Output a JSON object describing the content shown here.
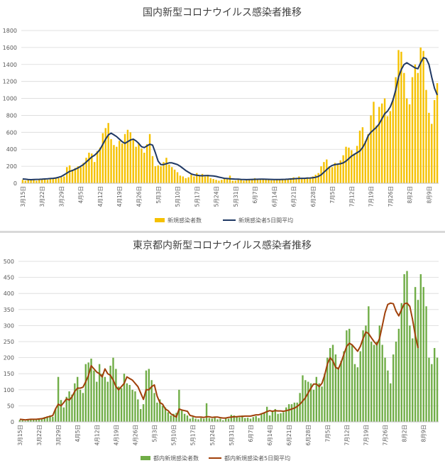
{
  "chart_data": [
    {
      "type": "bar",
      "title": "国内新型コロナウイルス感染者推移",
      "ylim": [
        0,
        1800
      ],
      "yticks": [
        0,
        200,
        400,
        600,
        800,
        1000,
        1200,
        1400,
        1600,
        1800
      ],
      "tick_labels": [
        "3月15日",
        "3月22日",
        "3月29日",
        "4月5日",
        "4月12日",
        "4月19日",
        "4月26日",
        "5月3日",
        "5月10日",
        "5月17日",
        "5月24日",
        "5月31日",
        "6月7日",
        "6月14日",
        "6月21日",
        "6月28日",
        "7月5日",
        "7月12日",
        "7月19日",
        "7月26日",
        "8月2日",
        "8月9日"
      ],
      "grid": true,
      "legend_position": "bottom",
      "colors": {
        "bars": "#f5c100",
        "line": "#1f3864"
      },
      "series": [
        {
          "name": "新規感染者数",
          "type": "bar",
          "values": [
            40,
            30,
            50,
            40,
            45,
            30,
            40,
            50,
            45,
            40,
            55,
            60,
            70,
            60,
            70,
            80,
            190,
            210,
            160,
            180,
            200,
            190,
            240,
            300,
            360,
            350,
            250,
            380,
            420,
            590,
            650,
            710,
            520,
            450,
            430,
            500,
            470,
            580,
            630,
            600,
            520,
            430,
            470,
            410,
            360,
            460,
            580,
            320,
            200,
            210,
            200,
            250,
            300,
            220,
            190,
            160,
            130,
            90,
            80,
            60,
            70,
            100,
            80,
            120,
            90,
            110,
            80,
            100,
            60,
            50,
            40,
            30,
            40,
            60,
            50,
            90,
            30,
            30,
            40,
            40,
            30,
            40,
            50,
            40,
            60,
            50,
            40,
            50,
            45,
            40,
            35,
            35,
            40,
            45,
            40,
            50,
            45,
            60,
            70,
            50,
            80,
            60,
            55,
            70,
            60,
            80,
            100,
            120,
            200,
            250,
            280,
            200,
            190,
            240,
            230,
            270,
            330,
            430,
            420,
            390,
            350,
            440,
            620,
            660,
            500,
            580,
            800,
            960,
            680,
            900,
            940,
            1000,
            790,
            850,
            1000,
            1250,
            1570,
            1550,
            1300,
            1000,
            930,
            1250,
            1400,
            1300,
            1600,
            1560,
            1100,
            830,
            700,
            980,
            1180
          ]
        },
        {
          "name": "新規感染者5日間平均",
          "type": "line",
          "values": [
            50,
            48,
            44,
            42,
            44,
            45,
            46,
            48,
            50,
            52,
            55,
            58,
            62,
            70,
            80,
            100,
            120,
            140,
            150,
            165,
            180,
            200,
            220,
            250,
            280,
            310,
            330,
            360,
            400,
            460,
            520,
            570,
            590,
            570,
            550,
            520,
            490,
            470,
            490,
            510,
            520,
            500,
            470,
            430,
            420,
            440,
            460,
            450,
            360,
            260,
            220,
            220,
            230,
            240,
            240,
            230,
            220,
            200,
            175,
            150,
            130,
            110,
            100,
            95,
            90,
            88,
            90,
            90,
            88,
            85,
            80,
            72,
            65,
            58,
            55,
            52,
            50,
            48,
            48,
            45,
            44,
            43,
            44,
            45,
            46,
            47,
            48,
            48,
            47,
            46,
            45,
            44,
            44,
            44,
            45,
            46,
            48,
            50,
            52,
            55,
            57,
            58,
            58,
            60,
            62,
            65,
            70,
            80,
            100,
            130,
            160,
            190,
            210,
            220,
            225,
            230,
            240,
            260,
            290,
            320,
            340,
            360,
            380,
            420,
            480,
            560,
            600,
            630,
            660,
            700,
            760,
            820,
            850,
            900,
            980,
            1100,
            1250,
            1340,
            1400,
            1420,
            1400,
            1380,
            1360,
            1350,
            1420,
            1480,
            1470,
            1400,
            1250,
            1120,
            1040
          ]
        }
      ]
    },
    {
      "type": "bar",
      "title": "東京都内新型コロナウイルス感染者推移",
      "ylim": [
        0,
        500
      ],
      "yticks": [
        0,
        50,
        100,
        150,
        200,
        250,
        300,
        350,
        400,
        450,
        500
      ],
      "tick_labels": [
        "3月15日",
        "3月22日",
        "3月29日",
        "4月5日",
        "4月12日",
        "4月19日",
        "4月26日",
        "5月3日",
        "5月10日",
        "5月17日",
        "5月24日",
        "5月31日",
        "6月7日",
        "6月14日",
        "6月21日",
        "6月28日",
        "7月5日",
        "7月12日",
        "7月19日",
        "7月26日",
        "8月2日",
        "8月9日"
      ],
      "grid": true,
      "legend_position": "bottom",
      "colors": {
        "bars": "#70ad47",
        "line": "#a0400a"
      },
      "series": [
        {
          "name": "都内新規感染者数",
          "type": "bar",
          "values": [
            6,
            5,
            3,
            7,
            8,
            9,
            6,
            10,
            12,
            15,
            17,
            20,
            16,
            40,
            140,
            68,
            45,
            78,
            95,
            85,
            120,
            140,
            100,
            90,
            180,
            185,
            197,
            160,
            125,
            180,
            150,
            140,
            125,
            175,
            200,
            165,
            110,
            105,
            150,
            120,
            115,
            100,
            95,
            70,
            40,
            55,
            160,
            165,
            130,
            90,
            60,
            70,
            50,
            45,
            30,
            20,
            25,
            28,
            100,
            35,
            25,
            20,
            10,
            15,
            10,
            8,
            12,
            10,
            58,
            12,
            10,
            15,
            8,
            10,
            5,
            12,
            10,
            22,
            20,
            15,
            14,
            20,
            12,
            13,
            10,
            15,
            18,
            12,
            25,
            30,
            47,
            20,
            35,
            40,
            25,
            27,
            30,
            45,
            55,
            55,
            60,
            60,
            90,
            145,
            130,
            125,
            120,
            100,
            140,
            120,
            110,
            150,
            200,
            230,
            240,
            210,
            170,
            190,
            220,
            285,
            290,
            240,
            180,
            170,
            220,
            285,
            300,
            360,
            250,
            240,
            250,
            300,
            240,
            200,
            160,
            120,
            210,
            250,
            290,
            370,
            460,
            470,
            300,
            260,
            420,
            380,
            460,
            420,
            360,
            200,
            180,
            230,
            200
          ]
        },
        {
          "name": "都内新規感染者5日間平均",
          "type": "line",
          "values": [
            8,
            7,
            6,
            7,
            8,
            8,
            8,
            9,
            10,
            12,
            15,
            17,
            20,
            40,
            55,
            50,
            60,
            72,
            68,
            78,
            95,
            105,
            105,
            108,
            125,
            145,
            175,
            165,
            155,
            150,
            140,
            165,
            150,
            145,
            130,
            110,
            100,
            110,
            120,
            140,
            135,
            130,
            120,
            110,
            90,
            70,
            100,
            100,
            110,
            115,
            80,
            60,
            55,
            40,
            35,
            25,
            20,
            15,
            40,
            37,
            35,
            33,
            20,
            18,
            15,
            15,
            15,
            14,
            16,
            16,
            14,
            15,
            15,
            13,
            12,
            12,
            14,
            15,
            16,
            16,
            17,
            17,
            18,
            18,
            18,
            20,
            22,
            22,
            25,
            28,
            32,
            35,
            33,
            35,
            34,
            34,
            33,
            35,
            37,
            40,
            43,
            48,
            55,
            65,
            75,
            90,
            105,
            118,
            118,
            110,
            120,
            145,
            180,
            200,
            190,
            170,
            165,
            185,
            210,
            235,
            245,
            240,
            230,
            220,
            235,
            260,
            280,
            275,
            262,
            250,
            240,
            260,
            300,
            340,
            366,
            370,
            368,
            345,
            330,
            350,
            368,
            370,
            360,
            320,
            270,
            230
          ]
        }
      ]
    }
  ]
}
